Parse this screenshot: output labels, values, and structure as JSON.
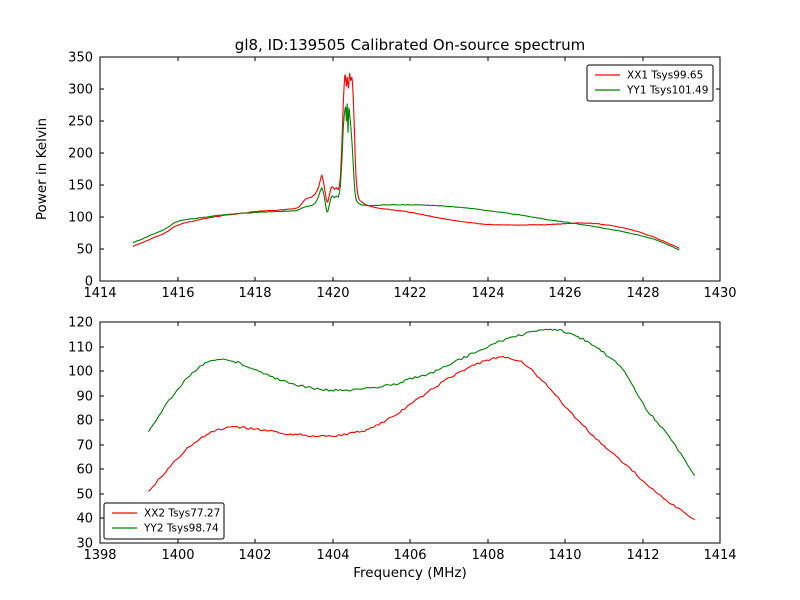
{
  "figure": {
    "background": "#ffffff",
    "frame_color": "#000000"
  },
  "chart_data": [
    {
      "type": "line",
      "title": "gl8, ID:139505 Calibrated On-source spectrum",
      "xlabel": "",
      "ylabel": "Power in Kelvin",
      "xlim": [
        1414,
        1430
      ],
      "ylim": [
        0,
        350
      ],
      "xticks": [
        1414,
        1416,
        1418,
        1420,
        1422,
        1424,
        1426,
        1428,
        1430
      ],
      "yticks": [
        0,
        50,
        100,
        150,
        200,
        250,
        300,
        350
      ],
      "grid": false,
      "legend_position": "upper-right",
      "series": [
        {
          "name": "XX1 Tsys99.65",
          "color": "#ff0000",
          "noise": 0.4,
          "points": [
            [
              1414.85,
              54
            ],
            [
              1415.1,
              60
            ],
            [
              1415.4,
              68
            ],
            [
              1415.7,
              76
            ],
            [
              1416.0,
              87
            ],
            [
              1416.5,
              95
            ],
            [
              1417.0,
              100.5
            ],
            [
              1417.4,
              104
            ],
            [
              1417.8,
              107
            ],
            [
              1418.2,
              109.5
            ],
            [
              1418.6,
              111
            ],
            [
              1419.0,
              113
            ],
            [
              1419.15,
              117
            ],
            [
              1419.3,
              128
            ],
            [
              1419.45,
              131
            ],
            [
              1419.55,
              136
            ],
            [
              1419.65,
              148
            ],
            [
              1419.72,
              165
            ],
            [
              1419.78,
              150
            ],
            [
              1419.84,
              128
            ],
            [
              1419.88,
              124
            ],
            [
              1419.95,
              143
            ],
            [
              1420.0,
              147
            ],
            [
              1420.05,
              143
            ],
            [
              1420.1,
              146
            ],
            [
              1420.15,
              143
            ],
            [
              1420.2,
              160
            ],
            [
              1420.24,
              210
            ],
            [
              1420.28,
              280
            ],
            [
              1420.31,
              315
            ],
            [
              1420.33,
              322
            ],
            [
              1420.36,
              305
            ],
            [
              1420.38,
              318
            ],
            [
              1420.41,
              302
            ],
            [
              1420.44,
              324
            ],
            [
              1420.47,
              313
            ],
            [
              1420.5,
              318
            ],
            [
              1420.53,
              295
            ],
            [
              1420.57,
              225
            ],
            [
              1420.61,
              160
            ],
            [
              1420.66,
              133
            ],
            [
              1420.72,
              125
            ],
            [
              1420.85,
              120
            ],
            [
              1421.0,
              116.5
            ],
            [
              1421.3,
              113
            ],
            [
              1421.7,
              110
            ],
            [
              1422.0,
              107.5
            ],
            [
              1422.5,
              101.5
            ],
            [
              1423.0,
              96
            ],
            [
              1423.5,
              91.5
            ],
            [
              1424.0,
              88.5
            ],
            [
              1424.5,
              87.5
            ],
            [
              1425.0,
              87.5
            ],
            [
              1425.5,
              88
            ],
            [
              1426.0,
              89.5
            ],
            [
              1426.4,
              90.5
            ],
            [
              1426.8,
              89.5
            ],
            [
              1427.2,
              86.5
            ],
            [
              1427.6,
              81.5
            ],
            [
              1428.0,
              75
            ],
            [
              1428.4,
              66
            ],
            [
              1428.7,
              58
            ],
            [
              1428.95,
              51
            ]
          ]
        },
        {
          "name": "YY1 Tsys101.49",
          "color": "#008000",
          "noise": 0.4,
          "points": [
            [
              1414.85,
              60
            ],
            [
              1415.1,
              66
            ],
            [
              1415.4,
              74
            ],
            [
              1415.7,
              82
            ],
            [
              1416.0,
              93
            ],
            [
              1416.5,
              98
            ],
            [
              1417.0,
              102
            ],
            [
              1417.4,
              104.5
            ],
            [
              1418.0,
              107
            ],
            [
              1418.5,
              108.5
            ],
            [
              1419.0,
              109.5
            ],
            [
              1419.15,
              112
            ],
            [
              1419.3,
              116
            ],
            [
              1419.45,
              118
            ],
            [
              1419.55,
              122
            ],
            [
              1419.65,
              134
            ],
            [
              1419.72,
              146
            ],
            [
              1419.78,
              134
            ],
            [
              1419.84,
              112
            ],
            [
              1419.88,
              109
            ],
            [
              1419.95,
              128
            ],
            [
              1420.0,
              133
            ],
            [
              1420.05,
              130
            ],
            [
              1420.1,
              133
            ],
            [
              1420.15,
              131
            ],
            [
              1420.2,
              148
            ],
            [
              1420.24,
              185
            ],
            [
              1420.28,
              240
            ],
            [
              1420.31,
              262
            ],
            [
              1420.34,
              272
            ],
            [
              1420.36,
              250
            ],
            [
              1420.38,
              277
            ],
            [
              1420.4,
              232
            ],
            [
              1420.42,
              270
            ],
            [
              1420.45,
              256
            ],
            [
              1420.48,
              235
            ],
            [
              1420.52,
              200
            ],
            [
              1420.56,
              155
            ],
            [
              1420.6,
              130
            ],
            [
              1420.66,
              122
            ],
            [
              1420.75,
              119
            ],
            [
              1421.0,
              118
            ],
            [
              1421.5,
              119
            ],
            [
              1422.0,
              119
            ],
            [
              1422.4,
              118.5
            ],
            [
              1423.0,
              116.5
            ],
            [
              1423.5,
              114
            ],
            [
              1424.0,
              110
            ],
            [
              1424.5,
              106
            ],
            [
              1425.0,
              101.5
            ],
            [
              1425.5,
              96.5
            ],
            [
              1426.0,
              92
            ],
            [
              1426.5,
              87.5
            ],
            [
              1427.0,
              82.5
            ],
            [
              1427.5,
              77
            ],
            [
              1428.0,
              70
            ],
            [
              1428.4,
              63
            ],
            [
              1428.7,
              55.5
            ],
            [
              1428.95,
              48.5
            ]
          ]
        }
      ]
    },
    {
      "type": "line",
      "title": "",
      "xlabel": "Frequency (MHz)",
      "ylabel": "",
      "xlim": [
        1398,
        1414
      ],
      "ylim": [
        30,
        120
      ],
      "xticks": [
        1398,
        1400,
        1402,
        1404,
        1406,
        1408,
        1410,
        1412,
        1414
      ],
      "yticks": [
        30,
        40,
        50,
        60,
        70,
        80,
        90,
        100,
        110,
        120
      ],
      "grid": false,
      "legend_position": "lower-left",
      "series": [
        {
          "name": "XX2 Tsys77.27",
          "color": "#ff0000",
          "noise": 0.5,
          "points": [
            [
              1399.25,
              51
            ],
            [
              1399.5,
              55.5
            ],
            [
              1399.75,
              60
            ],
            [
              1400.0,
              64.5
            ],
            [
              1400.25,
              68.5
            ],
            [
              1400.5,
              71.5
            ],
            [
              1400.75,
              74
            ],
            [
              1401.0,
              75.8
            ],
            [
              1401.3,
              76.8
            ],
            [
              1401.6,
              77
            ],
            [
              1401.9,
              76.7
            ],
            [
              1402.2,
              76
            ],
            [
              1402.5,
              75.3
            ],
            [
              1402.8,
              74.6
            ],
            [
              1403.1,
              74.1
            ],
            [
              1403.5,
              73.7
            ],
            [
              1403.9,
              73.6
            ],
            [
              1404.3,
              74.2
            ],
            [
              1404.7,
              75.3
            ],
            [
              1405.0,
              77
            ],
            [
              1405.4,
              80
            ],
            [
              1405.8,
              84
            ],
            [
              1406.2,
              88.5
            ],
            [
              1406.6,
              93
            ],
            [
              1407.0,
              97
            ],
            [
              1407.4,
              100.5
            ],
            [
              1407.8,
              103.5
            ],
            [
              1408.1,
              104.8
            ],
            [
              1408.4,
              105.5
            ],
            [
              1408.7,
              104.8
            ],
            [
              1409.0,
              102.5
            ],
            [
              1409.35,
              97
            ],
            [
              1409.7,
              91.5
            ],
            [
              1410.0,
              85.5
            ],
            [
              1410.4,
              79
            ],
            [
              1410.8,
              72.5
            ],
            [
              1411.2,
              67
            ],
            [
              1411.6,
              61.5
            ],
            [
              1412.0,
              55.5
            ],
            [
              1412.4,
              50
            ],
            [
              1412.8,
              45.5
            ],
            [
              1413.1,
              42
            ],
            [
              1413.35,
              39.5
            ]
          ]
        },
        {
          "name": "YY2 Tsys98.74",
          "color": "#008000",
          "noise": 0.5,
          "points": [
            [
              1399.25,
              75
            ],
            [
              1399.45,
              80
            ],
            [
              1399.65,
              85
            ],
            [
              1399.85,
              89.5
            ],
            [
              1400.05,
              93.5
            ],
            [
              1400.25,
              97
            ],
            [
              1400.45,
              100
            ],
            [
              1400.65,
              102.5
            ],
            [
              1400.85,
              104.3
            ],
            [
              1401.05,
              105
            ],
            [
              1401.25,
              104.8
            ],
            [
              1401.5,
              103.8
            ],
            [
              1401.8,
              102
            ],
            [
              1402.1,
              100
            ],
            [
              1402.4,
              98
            ],
            [
              1402.7,
              96.2
            ],
            [
              1403.0,
              94.7
            ],
            [
              1403.3,
              93.5
            ],
            [
              1403.6,
              92.8
            ],
            [
              1403.9,
              92.4
            ],
            [
              1404.2,
              92.3
            ],
            [
              1404.5,
              92.4
            ],
            [
              1404.8,
              92.8
            ],
            [
              1405.1,
              93.3
            ],
            [
              1405.4,
              94
            ],
            [
              1405.7,
              95
            ],
            [
              1406.0,
              96.8
            ],
            [
              1406.4,
              98.5
            ],
            [
              1406.8,
              101
            ],
            [
              1407.2,
              104
            ],
            [
              1407.6,
              107
            ],
            [
              1408.0,
              110
            ],
            [
              1408.4,
              112.5
            ],
            [
              1408.8,
              114.5
            ],
            [
              1409.2,
              116
            ],
            [
              1409.5,
              116.8
            ],
            [
              1409.8,
              116.8
            ],
            [
              1410.1,
              115.5
            ],
            [
              1410.4,
              113.5
            ],
            [
              1410.7,
              110.5
            ],
            [
              1411.0,
              107.5
            ],
            [
              1411.3,
              104
            ],
            [
              1411.6,
              98.5
            ],
            [
              1411.9,
              89.5
            ],
            [
              1412.2,
              82.5
            ],
            [
              1412.5,
              77
            ],
            [
              1412.8,
              70.5
            ],
            [
              1413.1,
              63.5
            ],
            [
              1413.35,
              57.5
            ]
          ]
        }
      ]
    }
  ]
}
